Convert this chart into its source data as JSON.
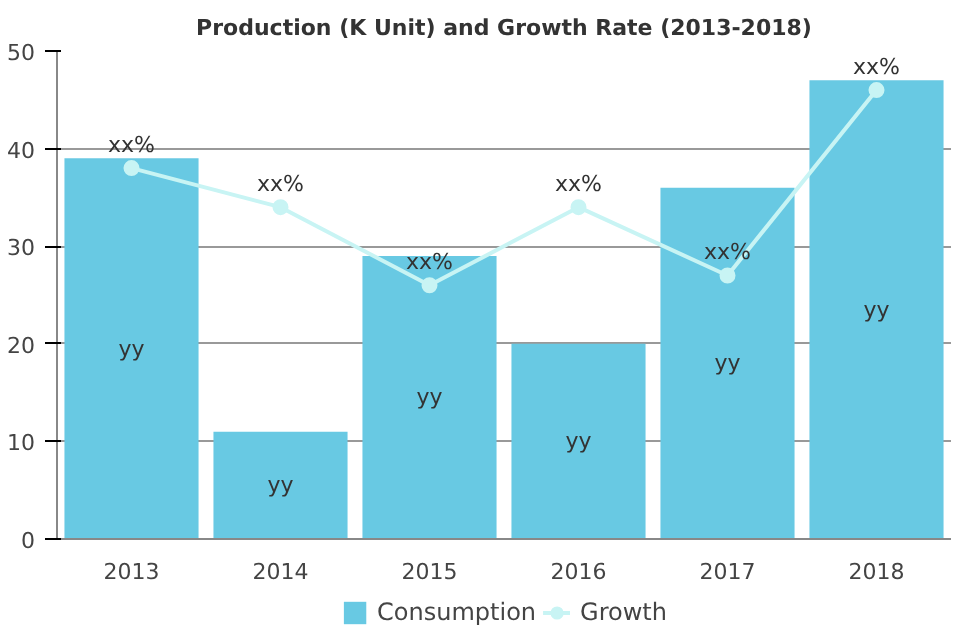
{
  "chart_data": {
    "type": "bar",
    "title": "Production (K Unit) and Growth Rate (2013-2018)",
    "categories": [
      "2013",
      "2014",
      "2015",
      "2016",
      "2017",
      "2018"
    ],
    "series": [
      {
        "name": "Consumption",
        "color": "#68c9e3",
        "values": [
          39,
          11,
          29,
          20,
          36,
          47
        ],
        "value_labels": [
          "yy",
          "yy",
          "yy",
          "yy",
          "yy",
          "yy"
        ]
      },
      {
        "name": "Growth",
        "type": "line",
        "color": "#c8f4f4",
        "marker": "circle",
        "values": [
          38,
          34,
          26,
          34,
          27,
          46
        ],
        "value_labels": [
          "xx%",
          "xx%",
          "xx%",
          "xx%",
          "xx%",
          "xx%"
        ]
      }
    ],
    "ylim": [
      0,
      50
    ],
    "yticks": [
      0,
      10,
      20,
      30,
      40,
      50
    ],
    "grid": "y",
    "legend": "bottom"
  }
}
